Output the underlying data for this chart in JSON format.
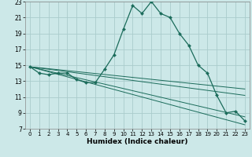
{
  "xlabel": "Humidex (Indice chaleur)",
  "bg_color": "#cce8e8",
  "grid_color": "#aacccc",
  "line_color": "#1a6b5a",
  "xlim": [
    -0.5,
    23.5
  ],
  "ylim": [
    7,
    23
  ],
  "xticks": [
    0,
    1,
    2,
    3,
    4,
    5,
    6,
    7,
    8,
    9,
    10,
    11,
    12,
    13,
    14,
    15,
    16,
    17,
    18,
    19,
    20,
    21,
    22,
    23
  ],
  "yticks": [
    7,
    9,
    11,
    13,
    15,
    17,
    19,
    21,
    23
  ],
  "main_x": [
    0,
    1,
    2,
    3,
    4,
    5,
    6,
    7,
    8,
    9,
    10,
    11,
    12,
    13,
    14,
    15,
    16,
    17,
    18,
    19,
    20,
    21,
    22,
    23
  ],
  "main_y": [
    14.8,
    14.0,
    13.8,
    14.0,
    14.0,
    13.2,
    12.8,
    12.8,
    14.5,
    16.3,
    19.5,
    22.5,
    21.5,
    23.0,
    21.5,
    21.0,
    19.0,
    17.5,
    15.0,
    14.0,
    11.2,
    9.0,
    9.2,
    8.0
  ],
  "line1_x": [
    0,
    23
  ],
  "line1_y": [
    14.8,
    12.0
  ],
  "line2_x": [
    0,
    23
  ],
  "line2_y": [
    14.8,
    11.2
  ],
  "line3_x": [
    0,
    23
  ],
  "line3_y": [
    14.8,
    7.5
  ],
  "line4_x": [
    0,
    23
  ],
  "line4_y": [
    14.8,
    8.5
  ]
}
